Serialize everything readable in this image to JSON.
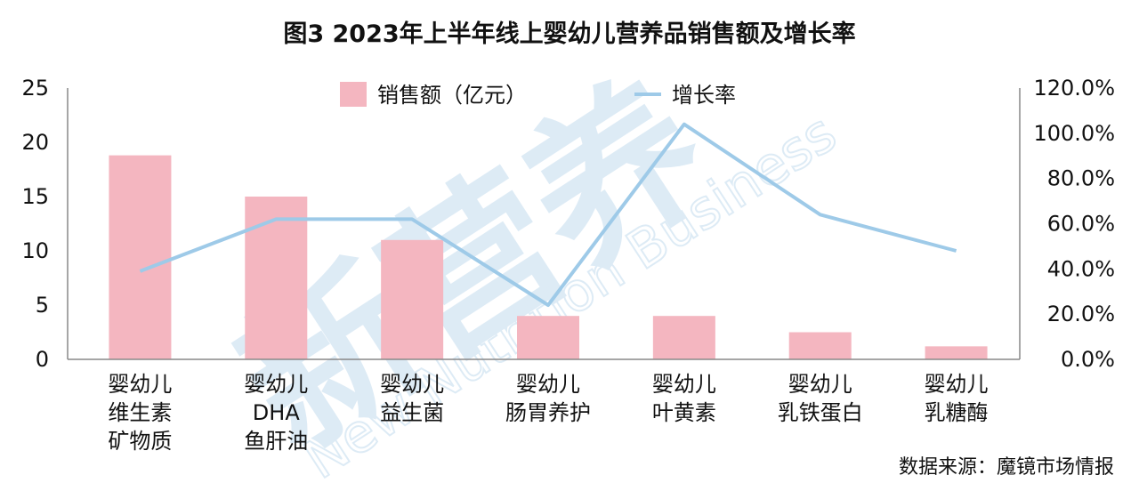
{
  "chart_data": {
    "type": "bar",
    "title": "图3 2023年上半年线上婴幼儿营养品销售额及增长率",
    "categories": [
      [
        "婴幼儿",
        "维生素",
        "矿物质"
      ],
      [
        "婴幼儿",
        "DHA",
        "鱼肝油"
      ],
      [
        "婴幼儿",
        "益生菌"
      ],
      [
        "婴幼儿",
        "肠胃养护"
      ],
      [
        "婴幼儿",
        "叶黄素"
      ],
      [
        "婴幼儿",
        "乳铁蛋白"
      ],
      [
        "婴幼儿",
        "乳糖酶"
      ]
    ],
    "series": [
      {
        "name": "销售额（亿元）",
        "type": "bar",
        "axis": "left",
        "color": "#f4b6c0",
        "values": [
          18.8,
          15.0,
          11.0,
          4.0,
          4.0,
          2.5,
          1.2
        ]
      },
      {
        "name": "增长率",
        "type": "line",
        "axis": "right",
        "color": "#9ecae8",
        "values": [
          39,
          62,
          62,
          24,
          104,
          64,
          48
        ]
      }
    ],
    "y_left": {
      "range": [
        0,
        25
      ],
      "ticks": [
        "0",
        "5",
        "10",
        "15",
        "20",
        "25"
      ]
    },
    "y_right": {
      "range": [
        0,
        120
      ],
      "ticks": [
        "0.0%",
        "20.0%",
        "40.0%",
        "60.0%",
        "80.0%",
        "100.0%",
        "120.0%"
      ]
    },
    "grid": false,
    "legend_position": "top-center"
  },
  "source": "数据来源：魔镜市场情报",
  "watermark": {
    "text_cn": "新营养",
    "text_en": "New Nutrition Business"
  }
}
